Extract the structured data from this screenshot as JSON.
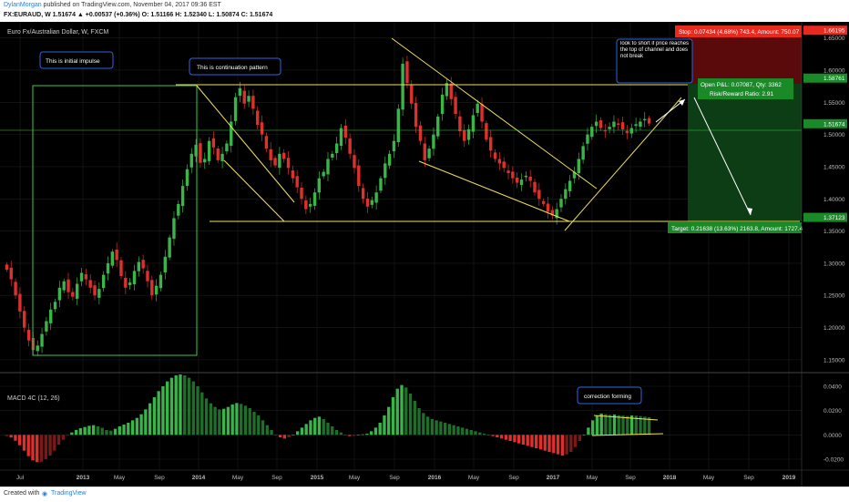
{
  "header": {
    "author": "DylanMorgan",
    "published": "published on TradingView.com, November 04, 2017 09:36 EST",
    "symbol_line": "FX:EURAUD, W  1.51674  ▲ +0.00537 (+0.36%)  O: 1.51166  H: 1.52340  L: 1.50874  C: 1.51674"
  },
  "footer": {
    "created": "Created with",
    "brand": "TradingView"
  },
  "colors": {
    "bg": "#000000",
    "up": "#3ab54a",
    "down": "#e0302c",
    "yellow": "#f0e05a",
    "green_line": "#3cc84c",
    "grid": "#1c1c1c"
  },
  "chart_data": [
    {
      "type": "candlestick",
      "title": "Euro Fx/Australian Dollar, W, FXCM",
      "x_ticks": [
        "Jul",
        "2013",
        "May",
        "Sep",
        "2014",
        "May",
        "Sep",
        "2015",
        "May",
        "Sep",
        "2016",
        "May",
        "Sep",
        "2017",
        "May",
        "Sep",
        "2018",
        "May",
        "Sep",
        "2019"
      ],
      "y_ticks": [
        "1.15000",
        "1.20000",
        "1.25000",
        "1.30000",
        "1.35000",
        "1.40000",
        "1.45000",
        "1.50000",
        "1.55000",
        "1.60000",
        "1.65000"
      ],
      "ylim": [
        1.13,
        1.675
      ],
      "series_close": [
        1.29,
        1.275,
        1.25,
        1.225,
        1.2,
        1.18,
        1.165,
        1.172,
        1.19,
        1.21,
        1.228,
        1.24,
        1.262,
        1.272,
        1.255,
        1.248,
        1.268,
        1.285,
        1.275,
        1.262,
        1.25,
        1.26,
        1.282,
        1.3,
        1.318,
        1.305,
        1.28,
        1.262,
        1.27,
        1.288,
        1.302,
        1.292,
        1.272,
        1.25,
        1.265,
        1.282,
        1.31,
        1.34,
        1.37,
        1.392,
        1.42,
        1.446,
        1.47,
        1.484,
        1.456,
        1.462,
        1.49,
        1.48,
        1.46,
        1.47,
        1.486,
        1.52,
        1.558,
        1.572,
        1.548,
        1.56,
        1.54,
        1.515,
        1.5,
        1.478,
        1.46,
        1.452,
        1.47,
        1.462,
        1.448,
        1.432,
        1.418,
        1.4,
        1.384,
        1.392,
        1.41,
        1.432,
        1.442,
        1.462,
        1.47,
        1.486,
        1.51,
        1.495,
        1.47,
        1.448,
        1.42,
        1.4,
        1.388,
        1.398,
        1.41,
        1.432,
        1.455,
        1.47,
        1.49,
        1.54,
        1.61,
        1.58,
        1.548,
        1.512,
        1.49,
        1.46,
        1.478,
        1.5,
        1.528,
        1.562,
        1.58,
        1.555,
        1.532,
        1.505,
        1.49,
        1.508,
        1.53,
        1.548,
        1.52,
        1.492,
        1.475,
        1.462,
        1.455,
        1.448,
        1.44,
        1.432,
        1.425,
        1.43,
        1.436,
        1.428,
        1.41,
        1.4,
        1.392,
        1.38,
        1.374,
        1.384,
        1.4,
        1.415,
        1.428,
        1.442,
        1.462,
        1.482,
        1.5,
        1.512,
        1.52,
        1.51,
        1.505,
        1.512,
        1.52,
        1.515,
        1.508,
        1.502,
        1.51,
        1.516,
        1.52,
        1.524,
        1.517
      ],
      "annotations": [
        "This is initial impulse",
        "This is continuation pattern",
        "look to short if price reaches the top of channel and does not break"
      ],
      "price_labels": [
        "1.66195",
        "1.58761",
        "1.51674",
        "1.37123"
      ],
      "position": {
        "stop_text": "Stop: 0.07434 (4.68%) 743.4, Amount: 750.07",
        "pl_text": "Open P&L: 0.07087, Qty: 3362",
        "rr_text": "Risk/Reward Ratio: 2.91",
        "target_text": "Target: 0.21638 (13.63%) 2163.8, Amount: 1727.4",
        "stop_price": 1.66195,
        "entry_price": 1.58761,
        "target_price": 1.37123
      }
    },
    {
      "type": "bar",
      "title": "MACD 4C (12, 26)",
      "y_ticks": [
        "0.0400",
        "0.0200",
        "0.0000",
        "-0.0200"
      ],
      "ylim": [
        -0.029,
        0.049
      ],
      "annotation": "correction forming",
      "values": [
        -0.001,
        -0.0022,
        -0.0048,
        -0.0085,
        -0.013,
        -0.0175,
        -0.021,
        -0.0225,
        -0.022,
        -0.02,
        -0.017,
        -0.013,
        -0.008,
        -0.004,
        -0.0005,
        0.002,
        0.004,
        0.0055,
        0.0065,
        0.0075,
        0.008,
        0.007,
        0.0058,
        0.004,
        0.0035,
        0.005,
        0.007,
        0.0085,
        0.01,
        0.012,
        0.014,
        0.017,
        0.021,
        0.026,
        0.031,
        0.036,
        0.04,
        0.044,
        0.047,
        0.049,
        0.0498,
        0.049,
        0.047,
        0.044,
        0.04,
        0.035,
        0.03,
        0.026,
        0.023,
        0.021,
        0.0215,
        0.023,
        0.025,
        0.0262,
        0.0255,
        0.024,
        0.022,
        0.019,
        0.016,
        0.012,
        0.008,
        0.004,
        0.0,
        -0.002,
        -0.003,
        -0.002,
        0.0,
        0.003,
        0.006,
        0.009,
        0.012,
        0.014,
        0.015,
        0.013,
        0.01,
        0.007,
        0.004,
        0.002,
        0.0,
        -0.001,
        -0.0008,
        0.0,
        0.0005,
        0.001,
        0.003,
        0.006,
        0.01,
        0.016,
        0.023,
        0.031,
        0.038,
        0.041,
        0.039,
        0.034,
        0.028,
        0.022,
        0.018,
        0.015,
        0.013,
        0.012,
        0.011,
        0.01,
        0.009,
        0.008,
        0.007,
        0.006,
        0.005,
        0.004,
        0.003,
        0.002,
        0.001,
        0.0,
        -0.001,
        -0.002,
        -0.003,
        -0.004,
        -0.005,
        -0.006,
        -0.007,
        -0.008,
        -0.009,
        -0.01,
        -0.011,
        -0.012,
        -0.013,
        -0.014,
        -0.015,
        -0.016,
        -0.017,
        -0.016,
        -0.014,
        -0.01,
        -0.005,
        0.0,
        0.006,
        0.012,
        0.016,
        0.0175,
        0.017,
        0.0165,
        0.0168,
        0.0162,
        0.0158,
        0.0155,
        0.016,
        0.0158,
        0.0155,
        0.015,
        0.0145
      ]
    }
  ]
}
